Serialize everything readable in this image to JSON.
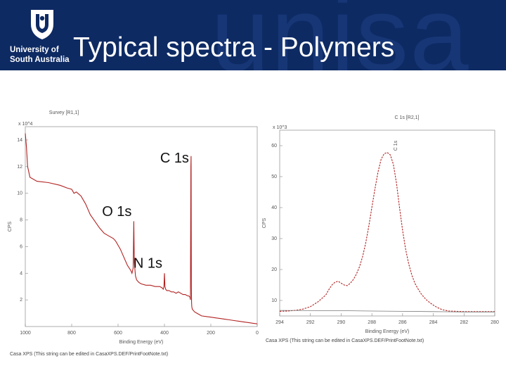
{
  "header": {
    "title": "Typical spectra - Polymers",
    "watermark": "unisa",
    "logo": {
      "line1": "University of",
      "line2": "South Australia"
    },
    "colors": {
      "background": "#0d2a63",
      "watermark": "#173676"
    }
  },
  "chart_data": [
    {
      "type": "line",
      "title": "Survey [R1,1]",
      "xlabel": "Binding Energy (eV)",
      "ylabel": "CPS",
      "y_multiplier": "x 10^4",
      "x_reversed": true,
      "xlim": [
        0,
        1000
      ],
      "ylim": [
        0,
        15
      ],
      "x_ticks": [
        "1000",
        "800",
        "600",
        "400",
        "200",
        "0"
      ],
      "y_ticks": [
        "2",
        "4",
        "6",
        "8",
        "10",
        "12",
        "14"
      ],
      "series": [
        {
          "color": "#b22222",
          "x": [
            1000,
            995,
            990,
            980,
            950,
            900,
            850,
            820,
            800,
            790,
            780,
            760,
            740,
            720,
            700,
            680,
            660,
            640,
            620,
            610,
            600,
            590,
            580,
            570,
            560,
            545,
            540,
            535,
            532,
            530,
            525,
            520,
            510,
            500,
            480,
            460,
            440,
            420,
            410,
            405,
            402,
            400,
            398,
            395,
            390,
            380,
            370,
            360,
            350,
            340,
            320,
            310,
            300,
            295,
            290,
            288,
            286,
            285,
            284,
            283,
            282,
            280,
            275,
            270,
            260,
            250,
            240,
            220,
            200,
            180,
            160,
            140,
            120,
            100,
            80,
            60,
            40,
            20,
            0
          ],
          "y": [
            14.5,
            13.5,
            12.0,
            11.2,
            10.9,
            10.8,
            10.6,
            10.4,
            10.3,
            10.0,
            10.1,
            9.8,
            9.2,
            8.4,
            7.9,
            7.4,
            7.0,
            6.8,
            6.6,
            6.4,
            6.1,
            5.8,
            5.4,
            5.0,
            4.6,
            4.2,
            4.0,
            4.4,
            7.9,
            4.8,
            3.8,
            3.5,
            3.3,
            3.2,
            3.1,
            3.1,
            3.0,
            3.0,
            2.9,
            2.8,
            3.0,
            4.0,
            3.0,
            2.8,
            2.7,
            2.7,
            2.6,
            2.6,
            2.5,
            2.6,
            2.4,
            2.4,
            2.3,
            2.3,
            2.2,
            2.0,
            12.0,
            12.8,
            3.0,
            1.8,
            1.5,
            1.3,
            1.2,
            1.1,
            1.0,
            0.9,
            0.8,
            0.75,
            0.7,
            0.65,
            0.6,
            0.55,
            0.5,
            0.45,
            0.4,
            0.35,
            0.3,
            0.25,
            0.2
          ]
        }
      ],
      "annotations": [
        {
          "text": "C 1s",
          "x": 285,
          "y": 12.3
        },
        {
          "text": "O 1s",
          "x": 532,
          "y": 8.3
        },
        {
          "text": "N 1s",
          "x": 400,
          "y": 4.4
        }
      ],
      "footer": "Casa XPS (This string can be edited in CasaXPS.DEF/PrintFootNote.txt)"
    },
    {
      "type": "line",
      "title": "C 1s [R2,1]",
      "xlabel": "Binding Energy (eV)",
      "ylabel": "CPS",
      "y_multiplier": "x 10^3",
      "x_reversed": true,
      "xlim": [
        280,
        294
      ],
      "ylim": [
        5,
        65
      ],
      "x_ticks": [
        "294",
        "292",
        "290",
        "288",
        "286",
        "284",
        "282",
        "280"
      ],
      "y_ticks": [
        "10",
        "20",
        "30",
        "40",
        "50",
        "60"
      ],
      "peak_label": "C 1s",
      "series": [
        {
          "color": "#b22222",
          "x": [
            294,
            293.5,
            293,
            292.5,
            292,
            291.5,
            291,
            290.8,
            290.6,
            290.4,
            290.2,
            290.0,
            289.8,
            289.6,
            289.4,
            289.2,
            289.0,
            288.8,
            288.6,
            288.4,
            288.2,
            288.0,
            287.8,
            287.6,
            287.4,
            287.2,
            287.0,
            286.8,
            286.6,
            286.4,
            286.2,
            286.0,
            285.8,
            285.6,
            285.4,
            285.2,
            285.0,
            284.8,
            284.6,
            284.4,
            284.2,
            284.0,
            283.8,
            283.6,
            283.4,
            283.2,
            283.0,
            282.5,
            282,
            281,
            280
          ],
          "y": [
            6.5,
            6.6,
            6.8,
            7.2,
            8.0,
            9.6,
            11.8,
            13.5,
            15.0,
            15.9,
            16.2,
            15.6,
            15.0,
            14.8,
            15.6,
            16.8,
            18.6,
            21.0,
            24.2,
            28.6,
            34.0,
            40.0,
            46.0,
            51.5,
            55.6,
            57.4,
            57.8,
            57.0,
            54.0,
            48.0,
            40.0,
            32.6,
            26.5,
            21.8,
            18.2,
            15.6,
            13.8,
            12.2,
            11.0,
            10.0,
            9.2,
            8.5,
            7.9,
            7.4,
            7.0,
            6.8,
            6.6,
            6.5,
            6.4,
            6.4,
            6.4
          ]
        },
        {
          "color": "#777777",
          "x": [
            294,
            290,
            288,
            286,
            284,
            282,
            280
          ],
          "y": [
            6.8,
            6.7,
            6.6,
            6.5,
            6.4,
            6.3,
            6.3
          ]
        }
      ],
      "footer": "Casa XPS (This string can be edited in CasaXPS.DEF/PrintFootNote.txt)"
    }
  ]
}
